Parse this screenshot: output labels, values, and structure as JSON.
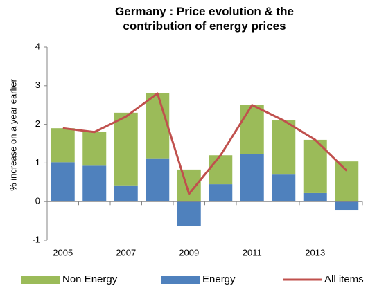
{
  "chart_data": {
    "type": "bar",
    "title": "Germany : Price evolution & the contribution of energy prices",
    "ylabel": "% increase on a year earlier",
    "categories": [
      "2005",
      null,
      "2007",
      null,
      "2009",
      null,
      "2011",
      null,
      "2013",
      null
    ],
    "series": [
      {
        "name": "Non Energy",
        "color": "#9bbb59",
        "type": "bar",
        "values": [
          0.88,
          0.87,
          1.88,
          1.68,
          0.83,
          0.75,
          1.27,
          1.4,
          1.38,
          1.04
        ]
      },
      {
        "name": "Energy",
        "color": "#4f81bd",
        "type": "bar",
        "values": [
          1.02,
          0.93,
          0.42,
          1.12,
          -0.63,
          0.45,
          1.23,
          0.7,
          0.22,
          -0.23
        ]
      },
      {
        "name": "All items",
        "color": "#c0504d",
        "type": "line",
        "values": [
          1.9,
          1.8,
          2.2,
          2.8,
          0.2,
          1.2,
          2.5,
          2.1,
          1.6,
          0.8
        ]
      }
    ],
    "stacked": true,
    "ylim": [
      -1,
      4
    ],
    "yticks": [
      -1,
      0,
      1,
      2,
      3,
      4
    ],
    "grid": false,
    "legend": "bottom"
  }
}
